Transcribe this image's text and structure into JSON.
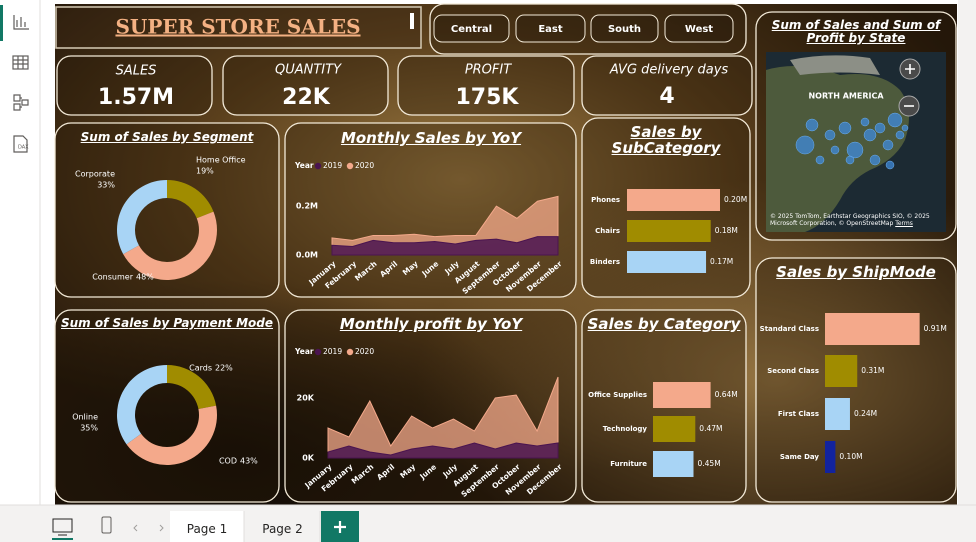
{
  "header": {
    "title": "SUPER STORE SALES"
  },
  "filters": [
    "Central",
    "East",
    "South",
    "West"
  ],
  "kpis": [
    {
      "label": "SALES",
      "value": "1.57M"
    },
    {
      "label": "QUANTITY",
      "value": "22K"
    },
    {
      "label": "PROFIT",
      "value": "175K"
    },
    {
      "label": "AVG delivery days",
      "value": "4"
    }
  ],
  "map": {
    "title": "Sum of Sales and Sum of Profit by State",
    "region_label": "NORTH AMERICA",
    "attribution": "© 2025 TomTom, Earthstar Geographics SIO, © 2025 Microsoft Corporation, © OpenStreetMap",
    "terms": "Terms"
  },
  "tabs": [
    "Page 1",
    "Page 2"
  ],
  "chart_data": [
    {
      "type": "donut",
      "title": "Sum of Sales by Segment",
      "categories": [
        "Home Office",
        "Consumer",
        "Corporate"
      ],
      "values": [
        19,
        48,
        33
      ],
      "value_labels": [
        "19%",
        "48%",
        "33%"
      ],
      "colors": [
        "#a08c00",
        "#f4a98b",
        "#a8d4f5"
      ]
    },
    {
      "type": "area",
      "title": "Monthly Sales by YoY",
      "legend_title": "Year",
      "categories": [
        "January",
        "February",
        "March",
        "April",
        "May",
        "June",
        "July",
        "August",
        "September",
        "October",
        "November",
        "December"
      ],
      "series": [
        {
          "name": "2020",
          "color": "#f4a98b",
          "values": [
            70000,
            60000,
            80000,
            80000,
            85000,
            75000,
            80000,
            80000,
            200000,
            150000,
            220000,
            240000
          ]
        },
        {
          "name": "2019",
          "color": "#4a1450",
          "values": [
            40000,
            35000,
            60000,
            50000,
            50000,
            55000,
            45000,
            60000,
            65000,
            50000,
            75000,
            75000
          ]
        }
      ],
      "ylim": [
        0,
        270000
      ],
      "yticks": [
        {
          "value": 0,
          "label": "0.0M"
        },
        {
          "value": 200000,
          "label": "0.2M"
        }
      ]
    },
    {
      "type": "hbar",
      "title": "Sales by SubCategory",
      "categories": [
        "Phones",
        "Chairs",
        "Binders"
      ],
      "values": [
        0.2,
        0.18,
        0.17
      ],
      "value_labels": [
        "0.20M",
        "0.18M",
        "0.17M"
      ],
      "colors": [
        "#f4a98b",
        "#a08c00",
        "#a8d4f5"
      ]
    },
    {
      "type": "donut",
      "title": "Sum of Sales by Payment Mode",
      "categories": [
        "Cards",
        "COD",
        "Online"
      ],
      "values": [
        22,
        43,
        35
      ],
      "value_labels": [
        "22%",
        "43%",
        "35%"
      ],
      "colors": [
        "#a08c00",
        "#f4a98b",
        "#a8d4f5"
      ]
    },
    {
      "type": "area",
      "title": "Monthly profit by YoY",
      "legend_title": "Year",
      "categories": [
        "January",
        "February",
        "March",
        "April",
        "May",
        "June",
        "July",
        "August",
        "September",
        "October",
        "November",
        "December"
      ],
      "series": [
        {
          "name": "2020",
          "color": "#f4a98b",
          "values": [
            10000,
            7000,
            19000,
            4000,
            14000,
            10000,
            13000,
            9000,
            20000,
            21000,
            9000,
            27000
          ]
        },
        {
          "name": "2019",
          "color": "#4a1450",
          "values": [
            2000,
            4000,
            2000,
            1000,
            3000,
            4000,
            3000,
            5000,
            3000,
            5000,
            4000,
            5000
          ]
        }
      ],
      "ylim": [
        0,
        30000
      ],
      "yticks": [
        {
          "value": 0,
          "label": "0K"
        },
        {
          "value": 20000,
          "label": "20K"
        }
      ]
    },
    {
      "type": "hbar",
      "title": "Sales by Category",
      "categories": [
        "Office Supplies",
        "Technology",
        "Furniture"
      ],
      "values": [
        0.64,
        0.47,
        0.45
      ],
      "value_labels": [
        "0.64M",
        "0.47M",
        "0.45M"
      ],
      "colors": [
        "#f4a98b",
        "#a08c00",
        "#a8d4f5"
      ]
    },
    {
      "type": "hbar",
      "title": "Sales by ShipMode",
      "categories": [
        "Standard Class",
        "Second Class",
        "First Class",
        "Same Day"
      ],
      "values": [
        0.91,
        0.31,
        0.24,
        0.1
      ],
      "value_labels": [
        "0.91M",
        "0.31M",
        "0.24M",
        "0.10M"
      ],
      "colors": [
        "#f4a98b",
        "#a08c00",
        "#a8d4f5",
        "#12239e"
      ]
    }
  ]
}
